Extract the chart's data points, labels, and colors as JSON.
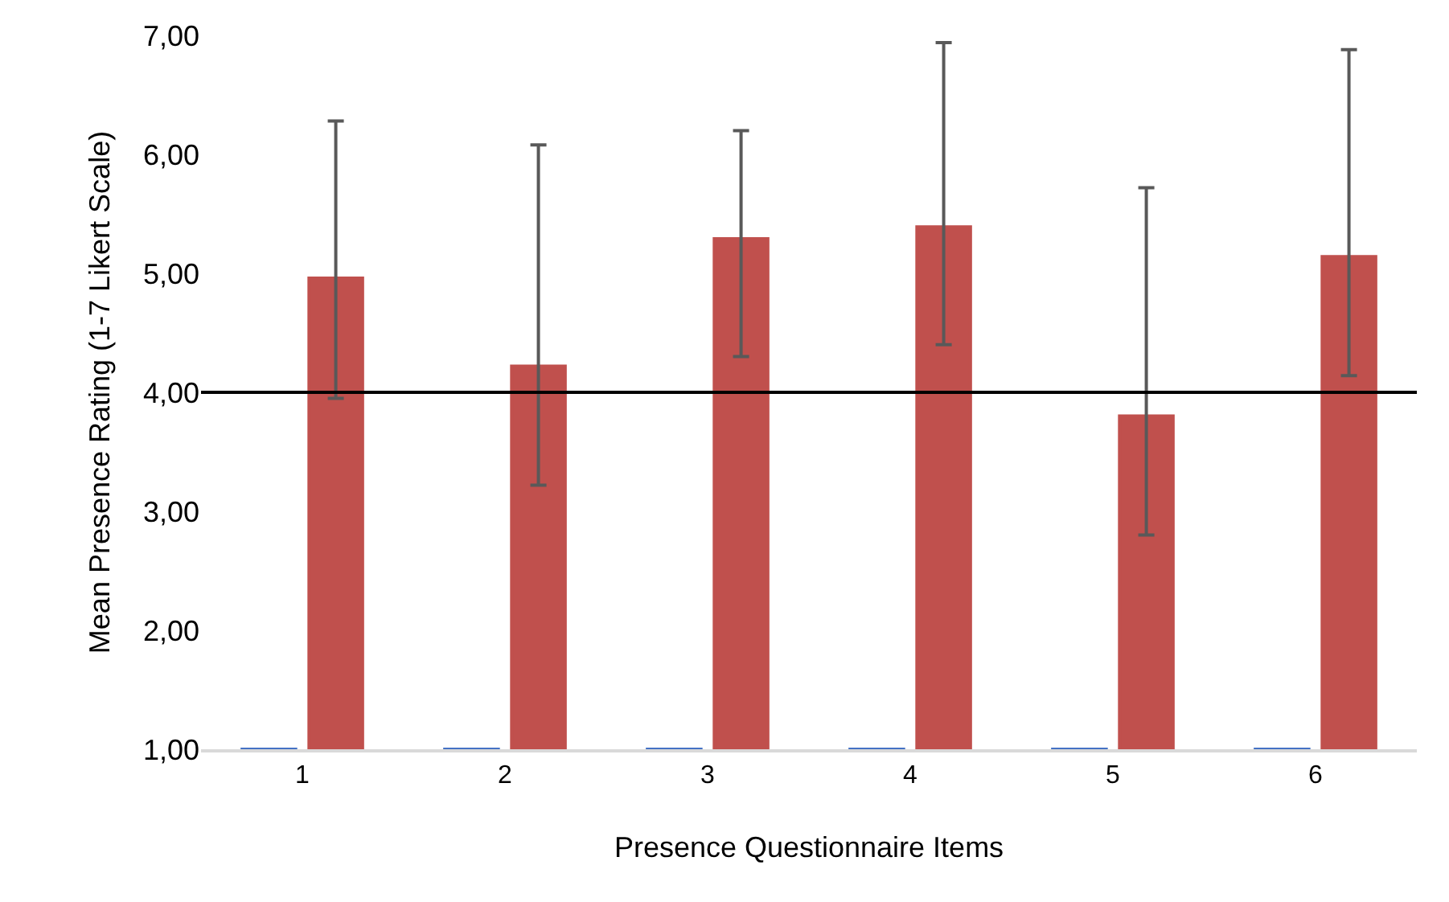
{
  "chart_data": {
    "type": "bar",
    "xlabel": "Presence Questionnaire Items",
    "ylabel": "Mean Presence Rating (1-7 Likert Scale)",
    "categories": [
      "1",
      "2",
      "3",
      "4",
      "5",
      "6"
    ],
    "series": [
      {
        "color": "#4472c4",
        "values": [
          1,
          1,
          1,
          1,
          1,
          1
        ]
      },
      {
        "color": "#c0504d",
        "values": [
          4.96,
          4.22,
          5.29,
          5.39,
          3.8,
          5.14
        ],
        "errors": [
          [
            3.95,
            6.28
          ],
          [
            3.22,
            6.08
          ],
          [
            4.3,
            6.2
          ],
          [
            4.4,
            6.94
          ],
          [
            2.8,
            5.72
          ],
          [
            4.14,
            6.88
          ]
        ]
      }
    ],
    "ylim": [
      1,
      7
    ],
    "yticks": [
      {
        "value": 1,
        "label": "1,00"
      },
      {
        "value": 2,
        "label": "2,00"
      },
      {
        "value": 3,
        "label": "3,00"
      },
      {
        "value": 4,
        "label": "4,00"
      },
      {
        "value": 5,
        "label": "5,00"
      },
      {
        "value": 6,
        "label": "6,00"
      },
      {
        "value": 7,
        "label": "7,00"
      }
    ],
    "ref_lines": [
      {
        "axis": "y",
        "value": 4,
        "color": "#000000"
      }
    ],
    "grid": false,
    "legend": false
  }
}
